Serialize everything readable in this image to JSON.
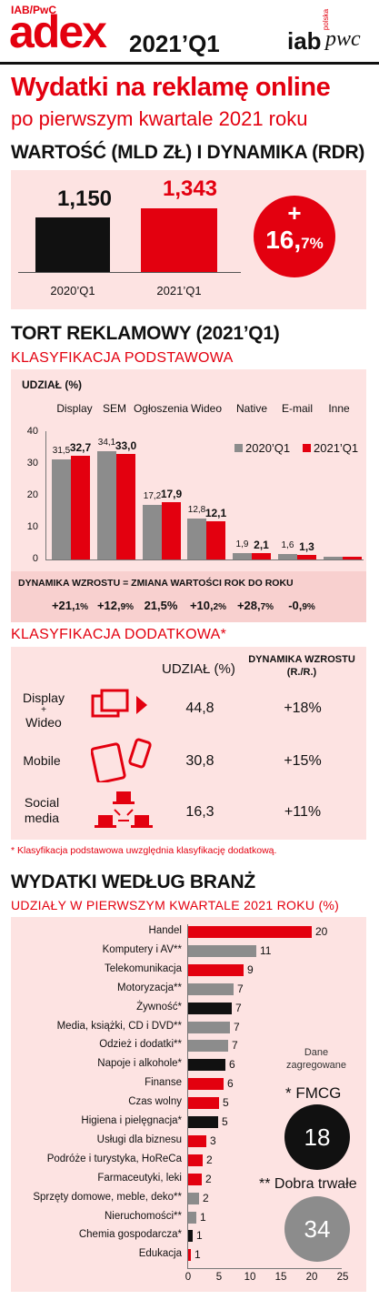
{
  "header": {
    "brand_small": "IAB/PwC",
    "brand": "adex",
    "period": "2021’Q1",
    "logo_iab": "iab",
    "logo_iab_sub": "polska",
    "logo_pwc": "pwc"
  },
  "title": "Wydatki na reklamę online",
  "subtitle": "po pierwszym kwartale 2021 roku",
  "colors": {
    "red": "#e3000f",
    "black": "#111111",
    "gray": "#8c8c8c",
    "panel": "#fde3e2"
  },
  "chart_data": [
    {
      "type": "bar",
      "title": "WARTOŚĆ (MLD ZŁ) I DYNAMIKA (RDR)",
      "categories": [
        "2020’Q1",
        "2021’Q1"
      ],
      "values": [
        1.15,
        1.343
      ],
      "value_labels": [
        "1,150",
        "1,343"
      ],
      "growth_plus": "+",
      "growth_main": "16,",
      "growth_rest": "7%",
      "bar_colors": [
        "#111111",
        "#e3000f"
      ],
      "ylim": [
        0,
        2.2
      ]
    },
    {
      "type": "bar",
      "title": "TORT REKLAMOWY (2021’Q1)",
      "subtitle": "KLASYFIKACJA PODSTAWOWA",
      "ylabel": "UDZIAŁ (%)",
      "categories": [
        "Display",
        "SEM",
        "Ogłoszenia",
        "Wideo",
        "Native",
        "E-mail",
        "Inne"
      ],
      "series": [
        {
          "name": "2020’Q1",
          "color": "#8c8c8c",
          "values": [
            31.5,
            34.1,
            17.2,
            12.8,
            1.9,
            1.6,
            0.8
          ],
          "labels": [
            "31,5",
            "34,1",
            "17,2",
            "12,8",
            "1,9",
            "1,6",
            ""
          ]
        },
        {
          "name": "2021’Q1",
          "color": "#e3000f",
          "values": [
            32.7,
            33.0,
            17.9,
            12.1,
            2.1,
            1.3,
            0.8
          ],
          "labels": [
            "32,7",
            "33,0",
            "17,9",
            "12,1",
            "2,1",
            "1,3",
            ""
          ]
        }
      ],
      "yticks": [
        "0",
        "10",
        "20",
        "30",
        "40"
      ],
      "ylim": [
        0,
        40
      ],
      "growth_title": "DYNAMIKA WZROSTU = ZMIANA WARTOŚCI ROK DO ROKU",
      "growth": [
        {
          "main": "+21,",
          "rest": "1%"
        },
        {
          "main": "+12,",
          "rest": "9%"
        },
        {
          "main": "21,5%",
          "rest": ""
        },
        {
          "main": "+10,",
          "rest": "2%"
        },
        {
          "main": "+28,",
          "rest": "7%"
        },
        {
          "main": "-0,",
          "rest": "9%"
        }
      ]
    },
    {
      "type": "bar",
      "title": "WYDATKI WEDŁUG BRANŻ",
      "subtitle": "UDZIAŁY W PIERWSZYM KWARTALE 2021 ROKU (%)",
      "orientation": "horizontal",
      "categories": [
        "Handel",
        "Komputery i AV**",
        "Telekomunikacja",
        "Motoryzacja**",
        "Żywność*",
        "Media, książki, CD i DVD**",
        "Odzież i dodatki**",
        "Napoje i alkohole*",
        "Finanse",
        "Czas wolny",
        "Higiena i pielęgnacja*",
        "Usługi dla biznesu",
        "Podróże i turystyka, HoReCa",
        "Farmaceutyki, leki",
        "Sprzęty domowe, meble, deko**",
        "Nieruchomości**",
        "Chemia gospodarcza*",
        "Edukacja"
      ],
      "values": [
        20,
        11,
        9,
        7,
        7,
        7,
        7,
        6,
        6,
        5,
        5,
        3,
        2,
        2,
        2,
        1,
        1,
        1
      ],
      "bar_values": [
        20,
        11,
        9,
        7.4,
        7,
        6.8,
        6.5,
        6,
        5.8,
        5,
        4.8,
        3,
        2.4,
        2.2,
        1.8,
        1.3,
        0.8,
        0.5
      ],
      "value_labels": [
        "20",
        "11",
        "9",
        "7",
        "7",
        "7",
        "7",
        "6",
        "6",
        "5",
        "5",
        "3",
        "2",
        "2",
        "2",
        "1",
        "1",
        "1"
      ],
      "kinds": [
        "red",
        "gray",
        "red",
        "gray",
        "black",
        "gray",
        "gray",
        "black",
        "red",
        "red",
        "black",
        "red",
        "red",
        "red",
        "gray",
        "gray",
        "black",
        "red"
      ],
      "xticks": [
        "0",
        "5",
        "10",
        "15",
        "20",
        "25"
      ],
      "xlim": [
        0,
        25
      ]
    }
  ],
  "section1": {
    "title": "WARTOŚĆ (MLD ZŁ) I DYNAMIKA (RDR)"
  },
  "section2": {
    "title": "TORT REKLAMOWY (2021’Q1)",
    "subtitle": "KLASYFIKACJA PODSTAWOWA",
    "ylabel": "UDZIAŁ (%)"
  },
  "section3": {
    "subtitle": "KLASYFIKACJA DODATKOWA*",
    "col_share": "UDZIAŁ (%)",
    "col_growth_1": "DYNAMIKA WZROSTU",
    "col_growth_2": "(R./R.)",
    "rows": [
      {
        "label_1": "Display",
        "label_2": "+",
        "label_3": "Wideo",
        "icon": "display-video-icon",
        "share": "44,8",
        "growth": "+18%"
      },
      {
        "label_1": "Mobile",
        "label_2": "",
        "label_3": "",
        "icon": "mobile-devices-icon",
        "share": "30,8",
        "growth": "+15%"
      },
      {
        "label_1": "Social",
        "label_2": "media",
        "label_3": "",
        "icon": "social-network-icon",
        "share": "16,3",
        "growth": "+11%"
      }
    ],
    "footnote": "* Klasyfikacja podstawowa uwzględnia klasyfikację dodatkową."
  },
  "section4": {
    "title": "WYDATKI WEDŁUG BRANŻ",
    "subtitle": "UDZIAŁY W PIERWSZYM KWARTALE 2021 ROKU (%)",
    "agg_1": "Dane",
    "agg_2": "zagregowane",
    "fmcg_label": "* FMCG",
    "fmcg_value": "18",
    "durable_label": "** Dobra trwałe",
    "durable_value": "34"
  }
}
